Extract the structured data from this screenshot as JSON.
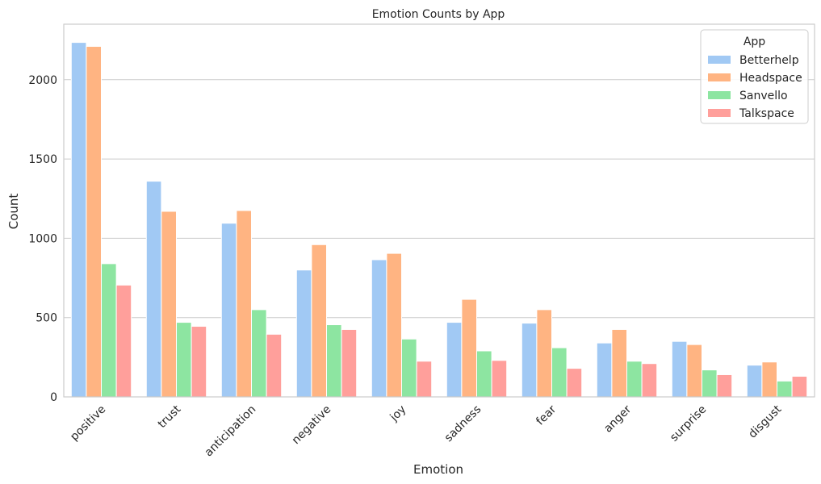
{
  "chart_data": {
    "type": "bar",
    "title": "Emotion Counts by App",
    "xlabel": "Emotion",
    "ylabel": "Count",
    "categories": [
      "positive",
      "trust",
      "anticipation",
      "negative",
      "joy",
      "sadness",
      "fear",
      "anger",
      "surprise",
      "disgust"
    ],
    "series": [
      {
        "name": "Betterhelp",
        "color": "#a1c9f4",
        "values": [
          2235,
          1360,
          1095,
          800,
          865,
          470,
          465,
          340,
          350,
          200
        ]
      },
      {
        "name": "Headspace",
        "color": "#ffb482",
        "values": [
          2210,
          1170,
          1175,
          960,
          905,
          615,
          550,
          425,
          330,
          220
        ]
      },
      {
        "name": "Sanvello",
        "color": "#8de5a1",
        "values": [
          840,
          470,
          550,
          455,
          365,
          290,
          310,
          225,
          170,
          100
        ]
      },
      {
        "name": "Talkspace",
        "color": "#ff9f9b",
        "values": [
          705,
          445,
          395,
          425,
          225,
          230,
          180,
          210,
          140,
          130
        ]
      }
    ],
    "ylim": [
      0,
      2350
    ],
    "yticks": [
      0,
      500,
      1000,
      1500,
      2000
    ],
    "grid": true,
    "legend": {
      "title": "App",
      "placement": "top-right"
    }
  }
}
